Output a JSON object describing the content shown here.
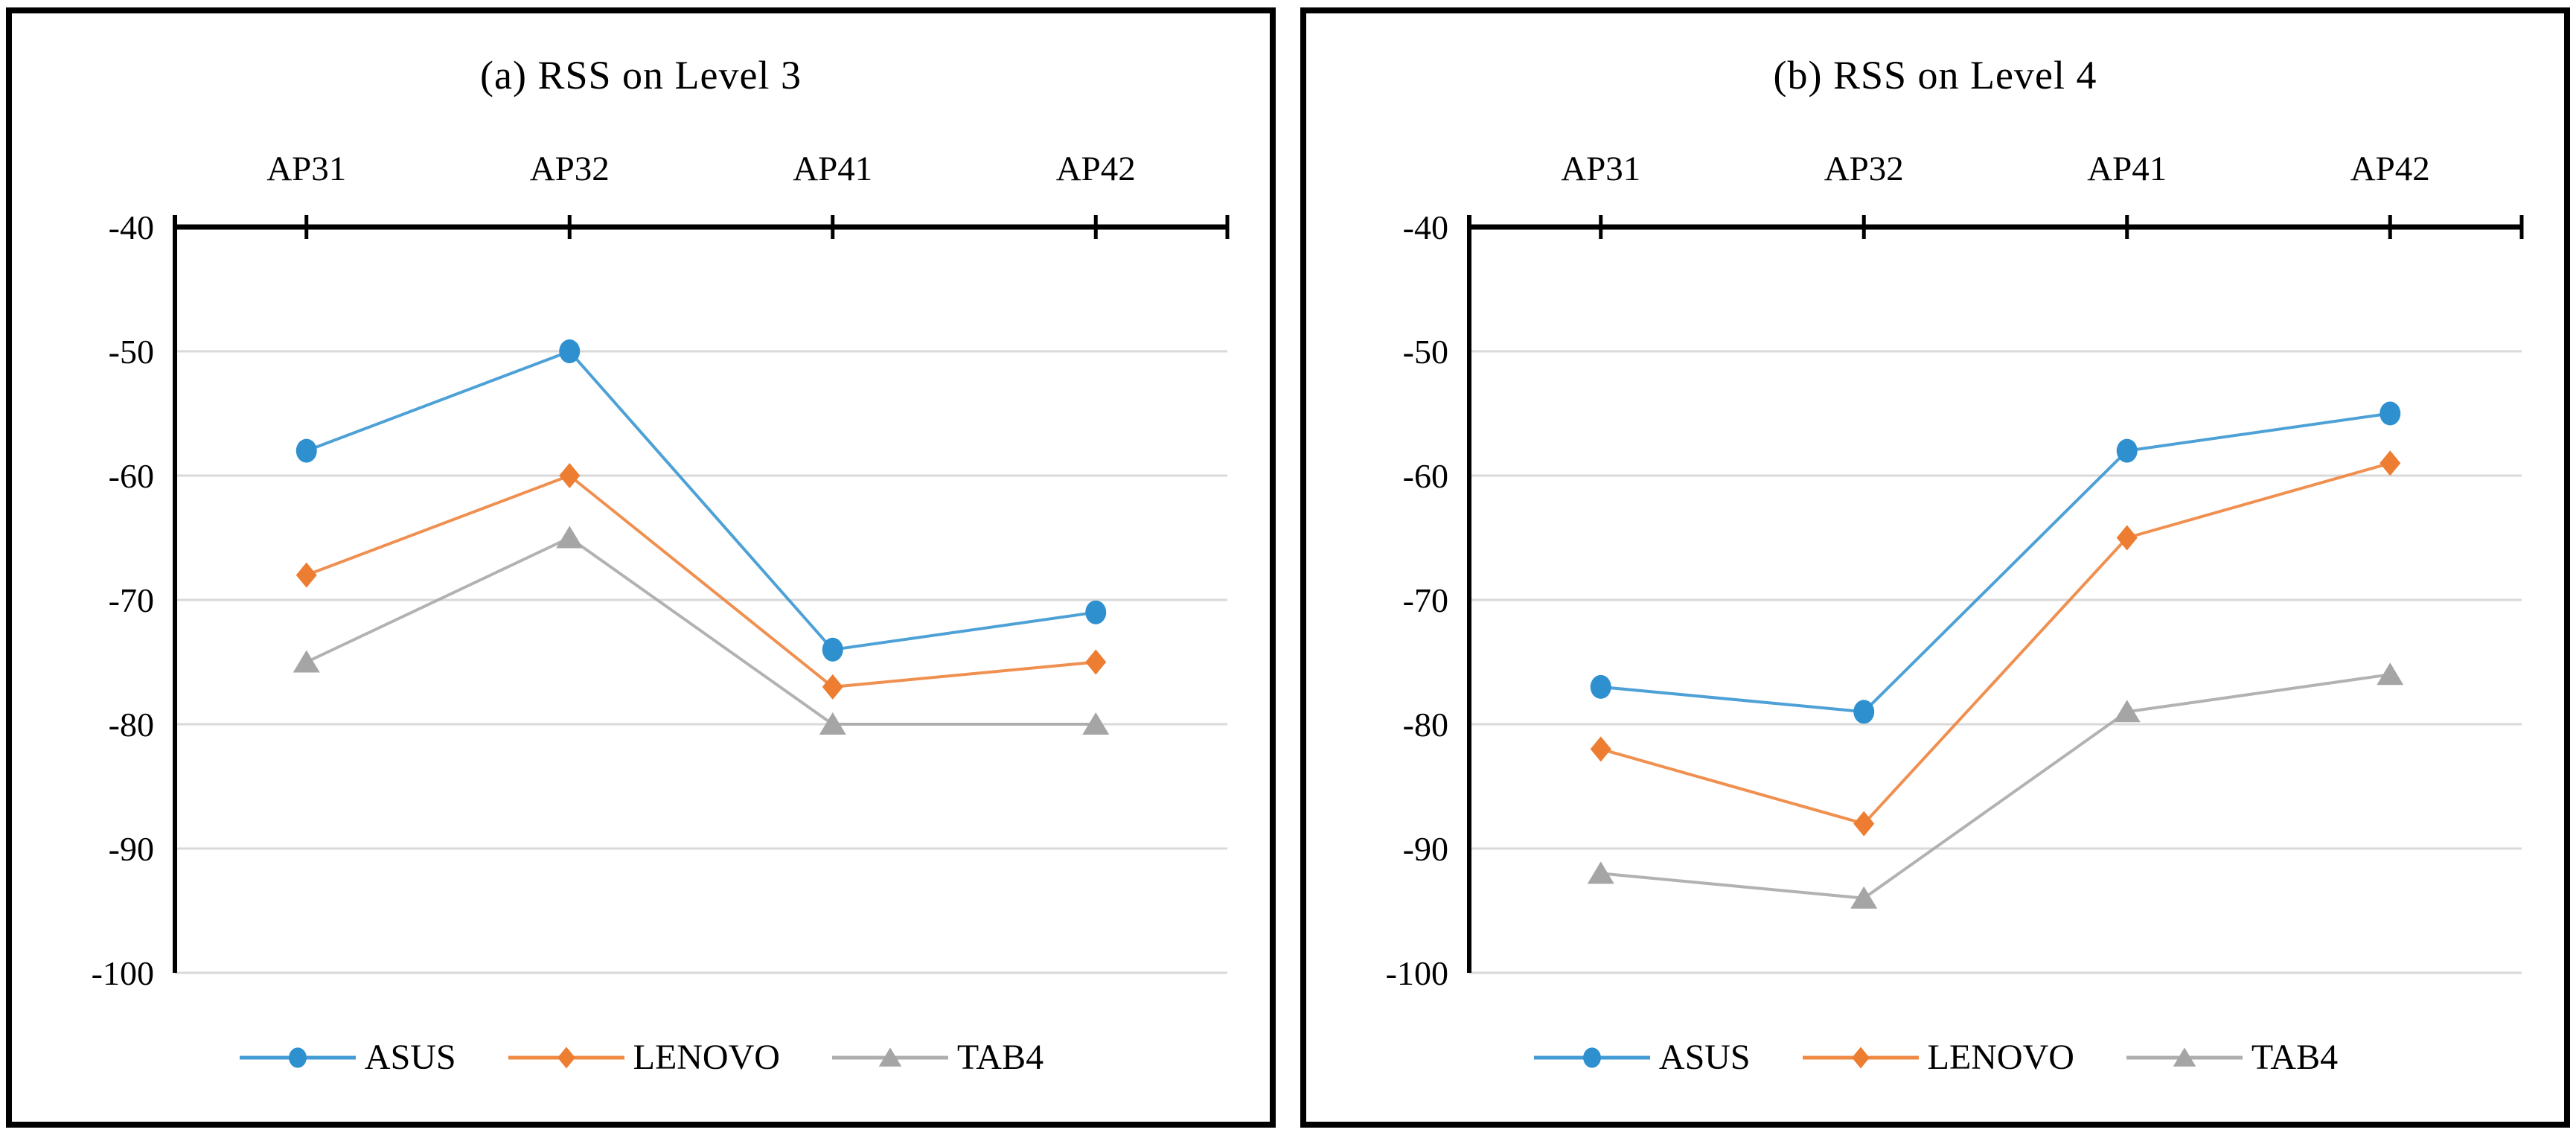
{
  "figure": {
    "background": "#FFFFFF",
    "panel_border_color": "#000000",
    "axis_color": "#000000",
    "gridline_color": "#D9D9D9",
    "text_color": "#000000"
  },
  "chart_data": [
    {
      "type": "line",
      "title": "(a) RSS on Level 3",
      "categories": [
        "AP31",
        "AP32",
        "AP41",
        "AP42"
      ],
      "series": [
        {
          "name": "ASUS",
          "marker": "circle",
          "color": "#2E90CF",
          "values": [
            -58,
            -50,
            -74,
            -71
          ]
        },
        {
          "name": "LENOVO",
          "marker": "diamond",
          "color": "#ED7D31",
          "values": [
            -68,
            -60,
            -77,
            -75
          ]
        },
        {
          "name": "TAB4",
          "marker": "triangle",
          "color": "#A5A5A5",
          "values": [
            -75,
            -65,
            -80,
            -80
          ]
        }
      ],
      "ylim": [
        -100,
        -40
      ],
      "ytick_step": 10,
      "ytick_labels": [
        "-40",
        "-50",
        "-60",
        "-70",
        "-80",
        "-90",
        "-100"
      ],
      "xlabel": "",
      "ylabel": "",
      "grid": "horizontal",
      "x_axis_position": "top",
      "legend_position": "bottom"
    },
    {
      "type": "line",
      "title": "(b) RSS on Level 4",
      "categories": [
        "AP31",
        "AP32",
        "AP41",
        "AP42"
      ],
      "series": [
        {
          "name": "ASUS",
          "marker": "circle",
          "color": "#2E90CF",
          "values": [
            -77,
            -79,
            -58,
            -55
          ]
        },
        {
          "name": "LENOVO",
          "marker": "diamond",
          "color": "#ED7D31",
          "values": [
            -82,
            -88,
            -65,
            -59
          ]
        },
        {
          "name": "TAB4",
          "marker": "triangle",
          "color": "#A5A5A5",
          "values": [
            -92,
            -94,
            -79,
            -76
          ]
        }
      ],
      "ylim": [
        -100,
        -40
      ],
      "ytick_step": 10,
      "ytick_labels": [
        "-40",
        "-50",
        "-60",
        "-70",
        "-80",
        "-90",
        "-100"
      ],
      "xlabel": "",
      "ylabel": "",
      "grid": "horizontal",
      "x_axis_position": "top",
      "legend_position": "bottom"
    }
  ]
}
